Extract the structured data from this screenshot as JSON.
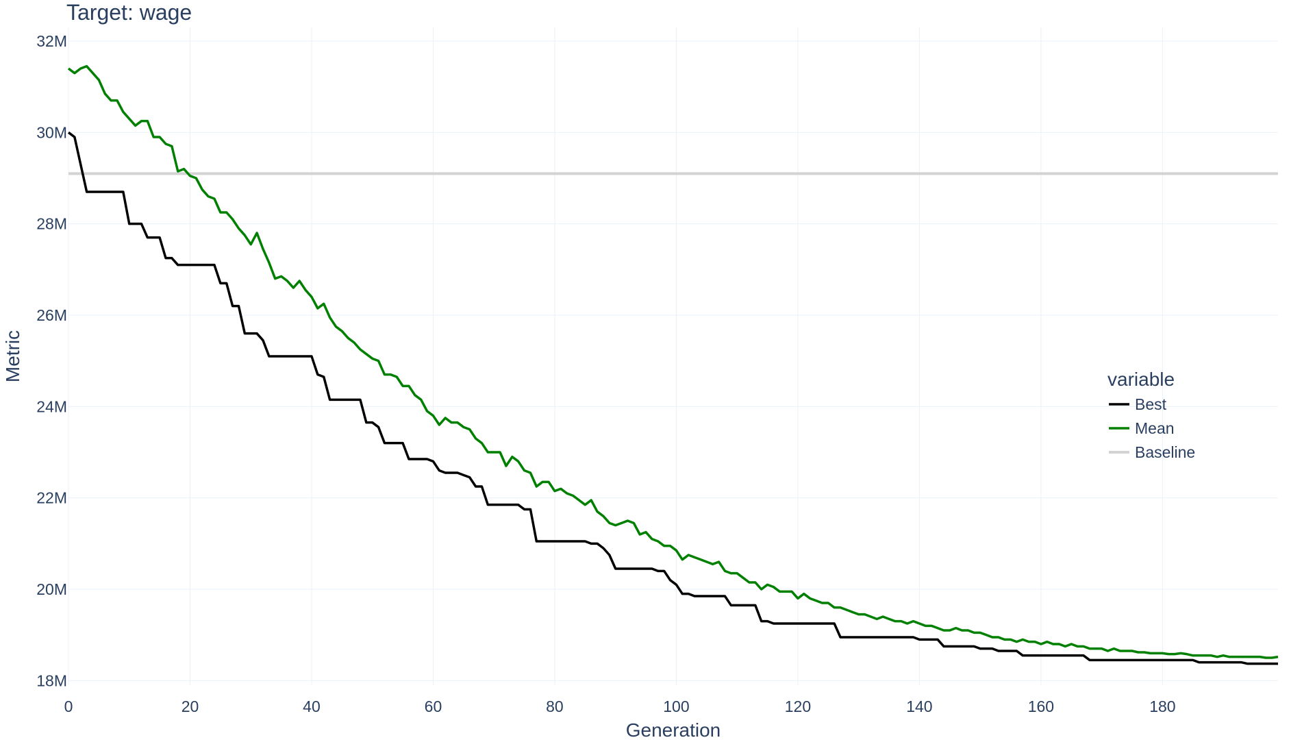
{
  "chart_data": {
    "type": "line",
    "title": "Target: wage",
    "xlabel": "Generation",
    "ylabel": "Metric",
    "xlim": [
      0,
      199
    ],
    "ylim": [
      17.9,
      32.3
    ],
    "y_unit_suffix": "M",
    "x_ticks": [
      0,
      20,
      40,
      60,
      80,
      100,
      120,
      140,
      160,
      180
    ],
    "y_ticks": [
      18,
      20,
      22,
      24,
      26,
      28,
      30,
      32
    ],
    "y_tick_labels": [
      "18M",
      "20M",
      "22M",
      "24M",
      "26M",
      "28M",
      "30M",
      "32M"
    ],
    "grid": true,
    "legend": {
      "title": "variable",
      "placement": "right"
    },
    "series": [
      {
        "name": "Best",
        "color": "#000000",
        "step_points": [
          [
            0,
            30.0
          ],
          [
            1,
            29.9
          ],
          [
            3,
            28.7
          ],
          [
            9,
            28.7
          ],
          [
            10,
            28.0
          ],
          [
            12,
            28.0
          ],
          [
            13,
            27.7
          ],
          [
            15,
            27.7
          ],
          [
            16,
            27.25
          ],
          [
            17,
            27.25
          ],
          [
            18,
            27.1
          ],
          [
            24,
            27.1
          ],
          [
            25,
            26.7
          ],
          [
            26,
            26.7
          ],
          [
            27,
            26.2
          ],
          [
            28,
            26.2
          ],
          [
            29,
            25.6
          ],
          [
            31,
            25.6
          ],
          [
            32,
            25.45
          ],
          [
            33,
            25.1
          ],
          [
            40,
            25.1
          ],
          [
            41,
            24.7
          ],
          [
            42,
            24.65
          ],
          [
            43,
            24.15
          ],
          [
            48,
            24.15
          ],
          [
            49,
            23.65
          ],
          [
            50,
            23.65
          ],
          [
            51,
            23.55
          ],
          [
            52,
            23.2
          ],
          [
            55,
            23.2
          ],
          [
            56,
            22.85
          ],
          [
            59,
            22.85
          ],
          [
            60,
            22.8
          ],
          [
            61,
            22.6
          ],
          [
            62,
            22.55
          ],
          [
            64,
            22.55
          ],
          [
            65,
            22.5
          ],
          [
            66,
            22.45
          ],
          [
            67,
            22.25
          ],
          [
            68,
            22.25
          ],
          [
            69,
            21.85
          ],
          [
            74,
            21.85
          ],
          [
            75,
            21.75
          ],
          [
            76,
            21.75
          ],
          [
            77,
            21.05
          ],
          [
            85,
            21.05
          ],
          [
            86,
            21.0
          ],
          [
            87,
            21.0
          ],
          [
            88,
            20.9
          ],
          [
            89,
            20.75
          ],
          [
            90,
            20.45
          ],
          [
            96,
            20.45
          ],
          [
            97,
            20.4
          ],
          [
            98,
            20.4
          ],
          [
            99,
            20.2
          ],
          [
            100,
            20.1
          ],
          [
            101,
            19.9
          ],
          [
            102,
            19.9
          ],
          [
            103,
            19.85
          ],
          [
            108,
            19.85
          ],
          [
            109,
            19.65
          ],
          [
            113,
            19.65
          ],
          [
            114,
            19.3
          ],
          [
            115,
            19.3
          ],
          [
            116,
            19.25
          ],
          [
            125,
            19.25
          ],
          [
            126,
            19.25
          ],
          [
            127,
            18.95
          ],
          [
            139,
            18.95
          ],
          [
            140,
            18.9
          ],
          [
            143,
            18.9
          ],
          [
            144,
            18.75
          ],
          [
            149,
            18.75
          ],
          [
            150,
            18.7
          ],
          [
            152,
            18.7
          ],
          [
            153,
            18.65
          ],
          [
            156,
            18.65
          ],
          [
            157,
            18.55
          ],
          [
            167,
            18.55
          ],
          [
            168,
            18.45
          ],
          [
            185,
            18.45
          ],
          [
            186,
            18.4
          ],
          [
            193,
            18.4
          ],
          [
            194,
            18.37
          ],
          [
            199,
            18.37
          ]
        ]
      },
      {
        "name": "Mean",
        "color": "#008000",
        "points": [
          [
            0,
            31.4
          ],
          [
            1,
            31.3
          ],
          [
            2,
            31.4
          ],
          [
            3,
            31.45
          ],
          [
            4,
            31.3
          ],
          [
            5,
            31.15
          ],
          [
            6,
            30.85
          ],
          [
            7,
            30.7
          ],
          [
            8,
            30.7
          ],
          [
            9,
            30.45
          ],
          [
            10,
            30.3
          ],
          [
            11,
            30.15
          ],
          [
            12,
            30.25
          ],
          [
            13,
            30.25
          ],
          [
            14,
            29.9
          ],
          [
            15,
            29.9
          ],
          [
            16,
            29.75
          ],
          [
            17,
            29.7
          ],
          [
            18,
            29.15
          ],
          [
            19,
            29.2
          ],
          [
            20,
            29.05
          ],
          [
            21,
            29.0
          ],
          [
            22,
            28.75
          ],
          [
            23,
            28.6
          ],
          [
            24,
            28.55
          ],
          [
            25,
            28.25
          ],
          [
            26,
            28.25
          ],
          [
            27,
            28.1
          ],
          [
            28,
            27.9
          ],
          [
            29,
            27.75
          ],
          [
            30,
            27.55
          ],
          [
            31,
            27.8
          ],
          [
            32,
            27.45
          ],
          [
            33,
            27.15
          ],
          [
            34,
            26.8
          ],
          [
            35,
            26.85
          ],
          [
            36,
            26.75
          ],
          [
            37,
            26.6
          ],
          [
            38,
            26.75
          ],
          [
            39,
            26.55
          ],
          [
            40,
            26.4
          ],
          [
            41,
            26.15
          ],
          [
            42,
            26.25
          ],
          [
            43,
            25.95
          ],
          [
            44,
            25.75
          ],
          [
            45,
            25.65
          ],
          [
            46,
            25.5
          ],
          [
            47,
            25.4
          ],
          [
            48,
            25.25
          ],
          [
            49,
            25.15
          ],
          [
            50,
            25.05
          ],
          [
            51,
            25.0
          ],
          [
            52,
            24.7
          ],
          [
            53,
            24.7
          ],
          [
            54,
            24.65
          ],
          [
            55,
            24.45
          ],
          [
            56,
            24.45
          ],
          [
            57,
            24.25
          ],
          [
            58,
            24.15
          ],
          [
            59,
            23.9
          ],
          [
            60,
            23.8
          ],
          [
            61,
            23.6
          ],
          [
            62,
            23.75
          ],
          [
            63,
            23.65
          ],
          [
            64,
            23.65
          ],
          [
            65,
            23.55
          ],
          [
            66,
            23.5
          ],
          [
            67,
            23.3
          ],
          [
            68,
            23.2
          ],
          [
            69,
            23.0
          ],
          [
            70,
            23.0
          ],
          [
            71,
            23.0
          ],
          [
            72,
            22.7
          ],
          [
            73,
            22.9
          ],
          [
            74,
            22.8
          ],
          [
            75,
            22.6
          ],
          [
            76,
            22.55
          ],
          [
            77,
            22.25
          ],
          [
            78,
            22.35
          ],
          [
            79,
            22.35
          ],
          [
            80,
            22.15
          ],
          [
            81,
            22.2
          ],
          [
            82,
            22.1
          ],
          [
            83,
            22.05
          ],
          [
            84,
            21.95
          ],
          [
            85,
            21.85
          ],
          [
            86,
            21.95
          ],
          [
            87,
            21.7
          ],
          [
            88,
            21.6
          ],
          [
            89,
            21.45
          ],
          [
            90,
            21.4
          ],
          [
            91,
            21.45
          ],
          [
            92,
            21.5
          ],
          [
            93,
            21.45
          ],
          [
            94,
            21.2
          ],
          [
            95,
            21.25
          ],
          [
            96,
            21.1
          ],
          [
            97,
            21.05
          ],
          [
            98,
            20.95
          ],
          [
            99,
            20.95
          ],
          [
            100,
            20.85
          ],
          [
            101,
            20.65
          ],
          [
            102,
            20.75
          ],
          [
            103,
            20.7
          ],
          [
            104,
            20.65
          ],
          [
            105,
            20.6
          ],
          [
            106,
            20.55
          ],
          [
            107,
            20.6
          ],
          [
            108,
            20.4
          ],
          [
            109,
            20.35
          ],
          [
            110,
            20.35
          ],
          [
            111,
            20.25
          ],
          [
            112,
            20.15
          ],
          [
            113,
            20.15
          ],
          [
            114,
            20.0
          ],
          [
            115,
            20.1
          ],
          [
            116,
            20.05
          ],
          [
            117,
            19.95
          ],
          [
            118,
            19.95
          ],
          [
            119,
            19.95
          ],
          [
            120,
            19.8
          ],
          [
            121,
            19.9
          ],
          [
            122,
            19.8
          ],
          [
            123,
            19.75
          ],
          [
            124,
            19.7
          ],
          [
            125,
            19.7
          ],
          [
            126,
            19.6
          ],
          [
            127,
            19.6
          ],
          [
            128,
            19.55
          ],
          [
            129,
            19.5
          ],
          [
            130,
            19.45
          ],
          [
            131,
            19.45
          ],
          [
            132,
            19.4
          ],
          [
            133,
            19.35
          ],
          [
            134,
            19.4
          ],
          [
            135,
            19.35
          ],
          [
            136,
            19.3
          ],
          [
            137,
            19.3
          ],
          [
            138,
            19.25
          ],
          [
            139,
            19.3
          ],
          [
            140,
            19.25
          ],
          [
            141,
            19.2
          ],
          [
            142,
            19.2
          ],
          [
            143,
            19.15
          ],
          [
            144,
            19.1
          ],
          [
            145,
            19.1
          ],
          [
            146,
            19.15
          ],
          [
            147,
            19.1
          ],
          [
            148,
            19.1
          ],
          [
            149,
            19.05
          ],
          [
            150,
            19.05
          ],
          [
            151,
            19.0
          ],
          [
            152,
            18.95
          ],
          [
            153,
            18.95
          ],
          [
            154,
            18.9
          ],
          [
            155,
            18.9
          ],
          [
            156,
            18.85
          ],
          [
            157,
            18.9
          ],
          [
            158,
            18.85
          ],
          [
            159,
            18.85
          ],
          [
            160,
            18.8
          ],
          [
            161,
            18.85
          ],
          [
            162,
            18.8
          ],
          [
            163,
            18.8
          ],
          [
            164,
            18.75
          ],
          [
            165,
            18.8
          ],
          [
            166,
            18.75
          ],
          [
            167,
            18.75
          ],
          [
            168,
            18.7
          ],
          [
            169,
            18.7
          ],
          [
            170,
            18.7
          ],
          [
            171,
            18.65
          ],
          [
            172,
            18.7
          ],
          [
            173,
            18.65
          ],
          [
            174,
            18.65
          ],
          [
            175,
            18.65
          ],
          [
            176,
            18.62
          ],
          [
            177,
            18.62
          ],
          [
            178,
            18.6
          ],
          [
            179,
            18.6
          ],
          [
            180,
            18.6
          ],
          [
            181,
            18.58
          ],
          [
            182,
            18.58
          ],
          [
            183,
            18.6
          ],
          [
            184,
            18.58
          ],
          [
            185,
            18.55
          ],
          [
            186,
            18.55
          ],
          [
            187,
            18.55
          ],
          [
            188,
            18.55
          ],
          [
            189,
            18.52
          ],
          [
            190,
            18.55
          ],
          [
            191,
            18.52
          ],
          [
            192,
            18.52
          ],
          [
            193,
            18.52
          ],
          [
            194,
            18.52
          ],
          [
            195,
            18.52
          ],
          [
            196,
            18.52
          ],
          [
            197,
            18.5
          ],
          [
            198,
            18.5
          ],
          [
            199,
            18.52
          ]
        ]
      },
      {
        "name": "Baseline",
        "color": "#d3d3d3",
        "constant": 29.1
      }
    ]
  }
}
